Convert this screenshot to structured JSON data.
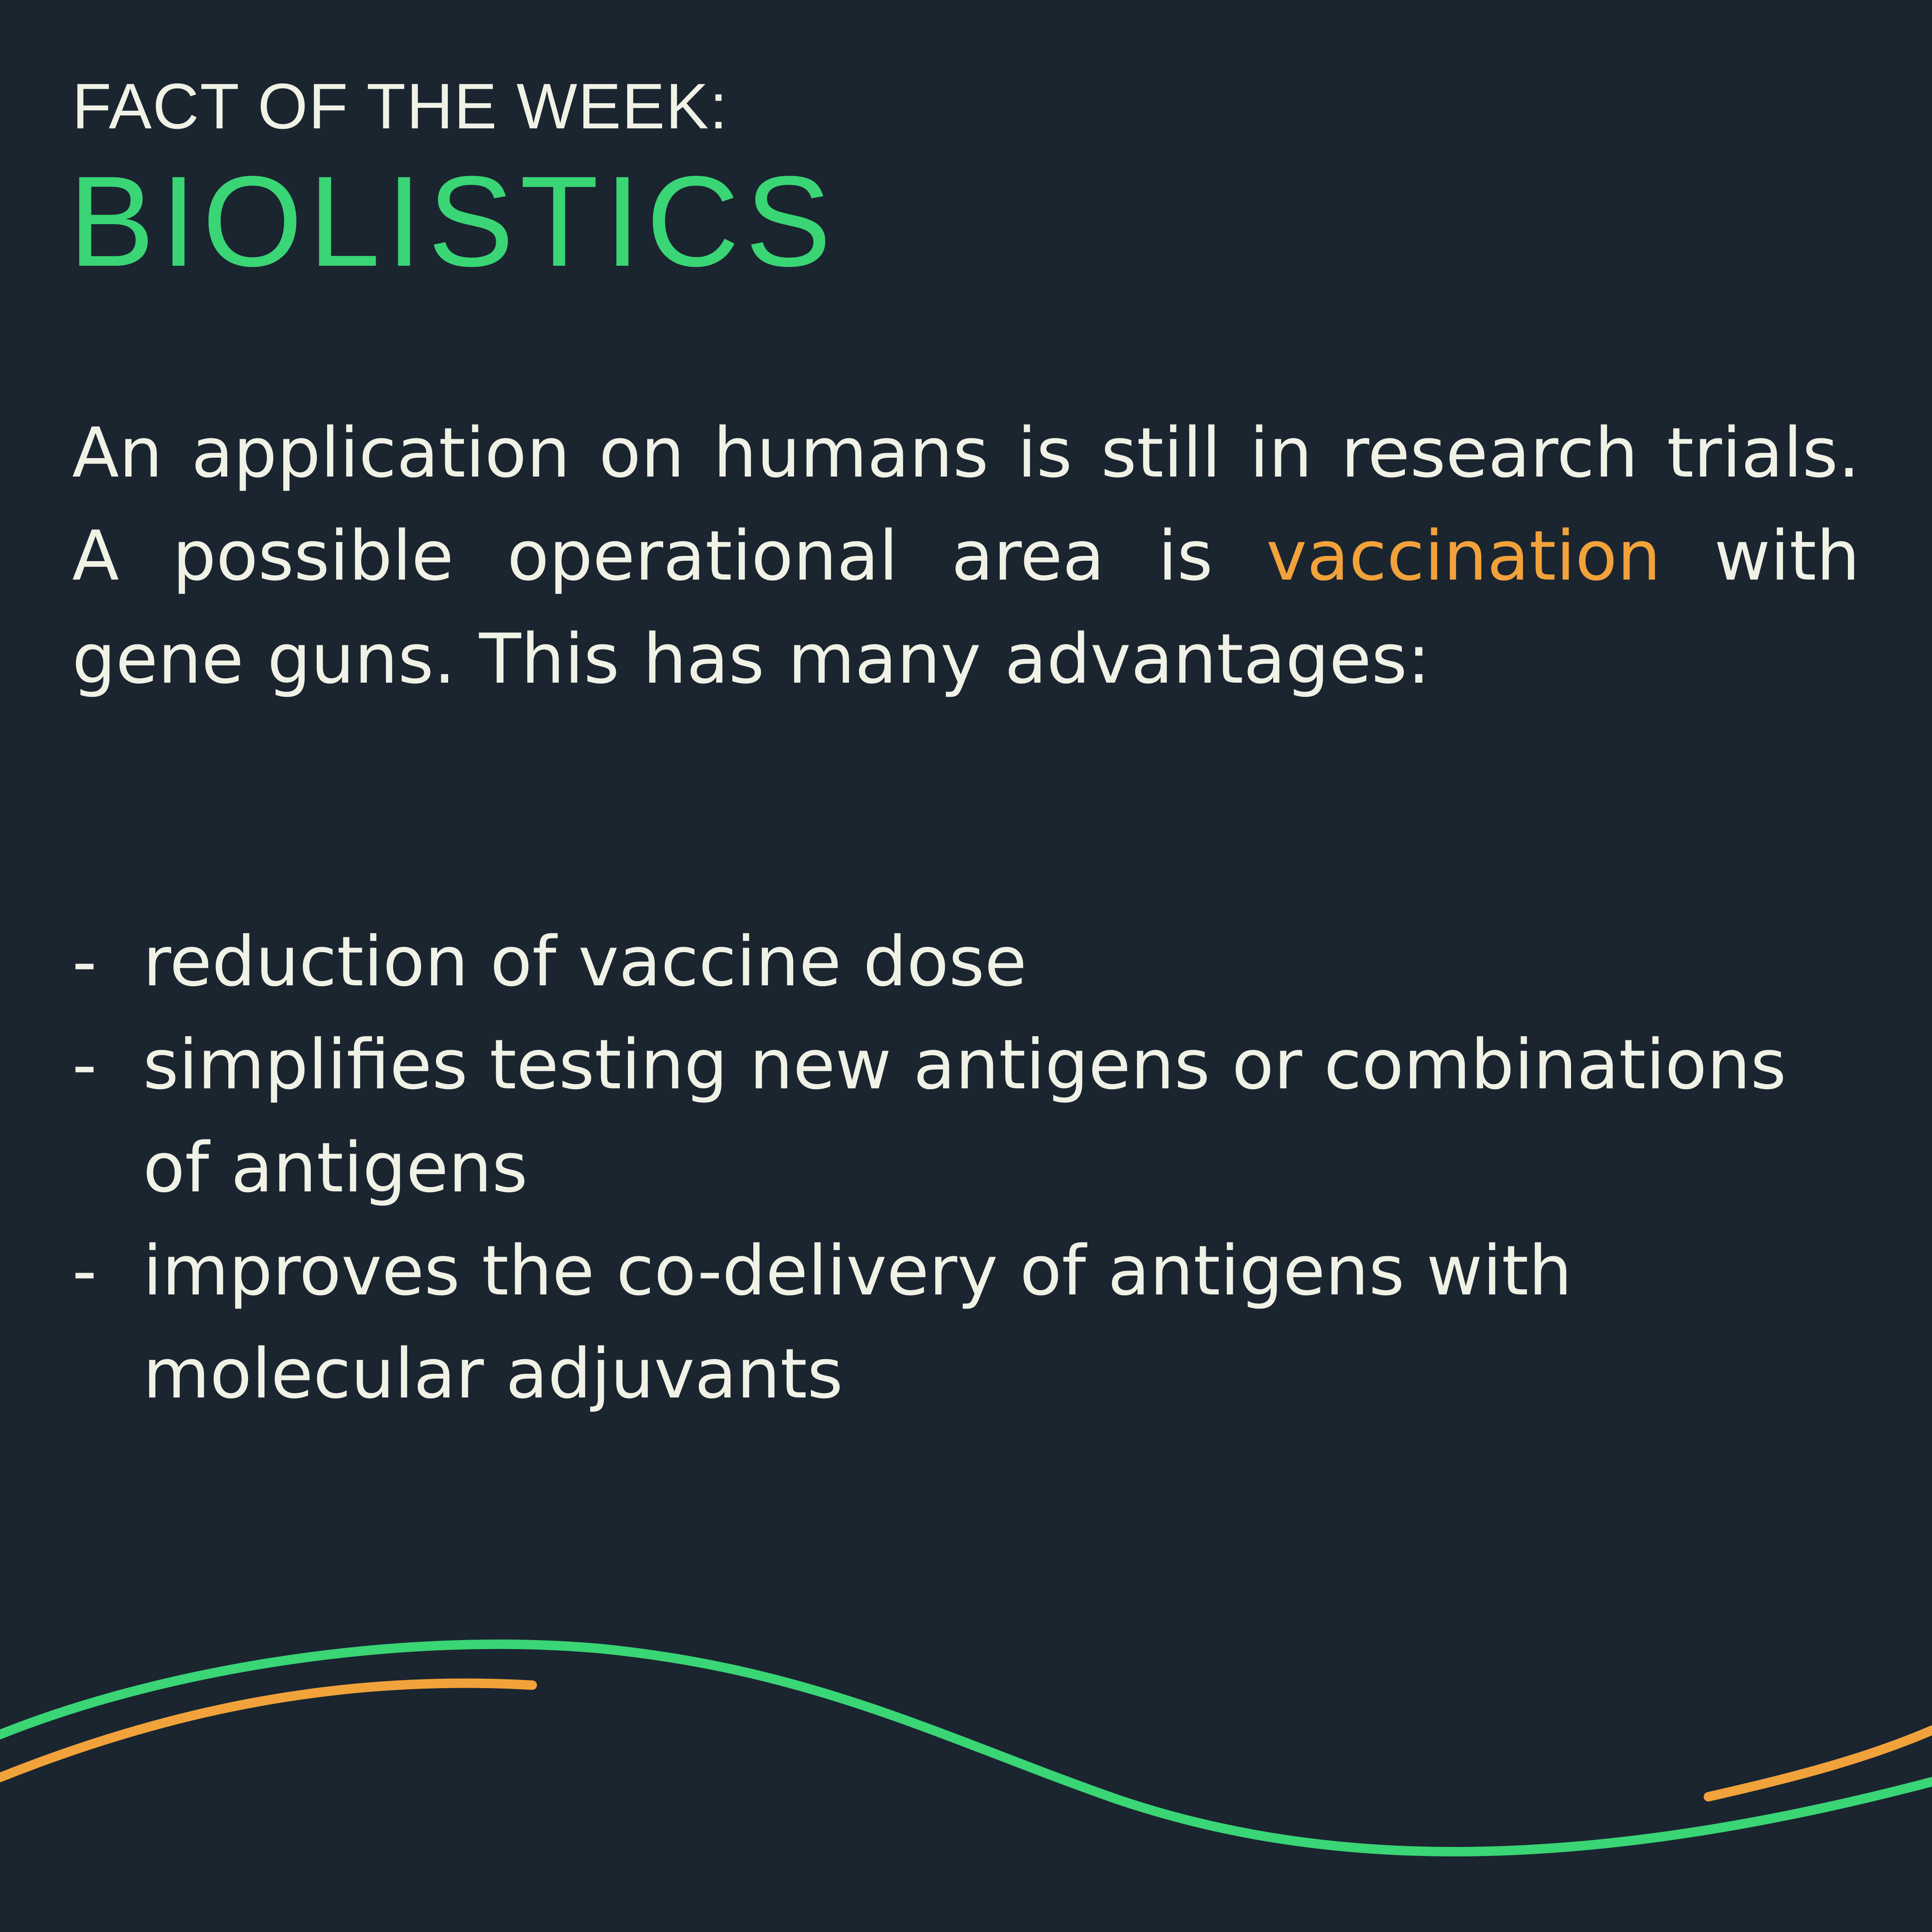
{
  "header": {
    "kicker": "FACT OF THE WEEK:",
    "title": "BIOLISTICS"
  },
  "intro": {
    "before": "An application on humans is still in research trials. A possible operational area is ",
    "highlight": "vaccination",
    "after": " with gene guns. This has many advantages:"
  },
  "advantages": {
    "bullet": "-",
    "items": [
      "reduction of vaccine dose",
      "simplifies testing new antigens or combinations of antigens",
      "improves the co-delivery of antigens with molecular adjuvants"
    ]
  },
  "colors": {
    "background": "#1a2530",
    "text": "#f1f2e6",
    "accent_green": "#3ad575",
    "accent_orange": "#f2a23a"
  }
}
